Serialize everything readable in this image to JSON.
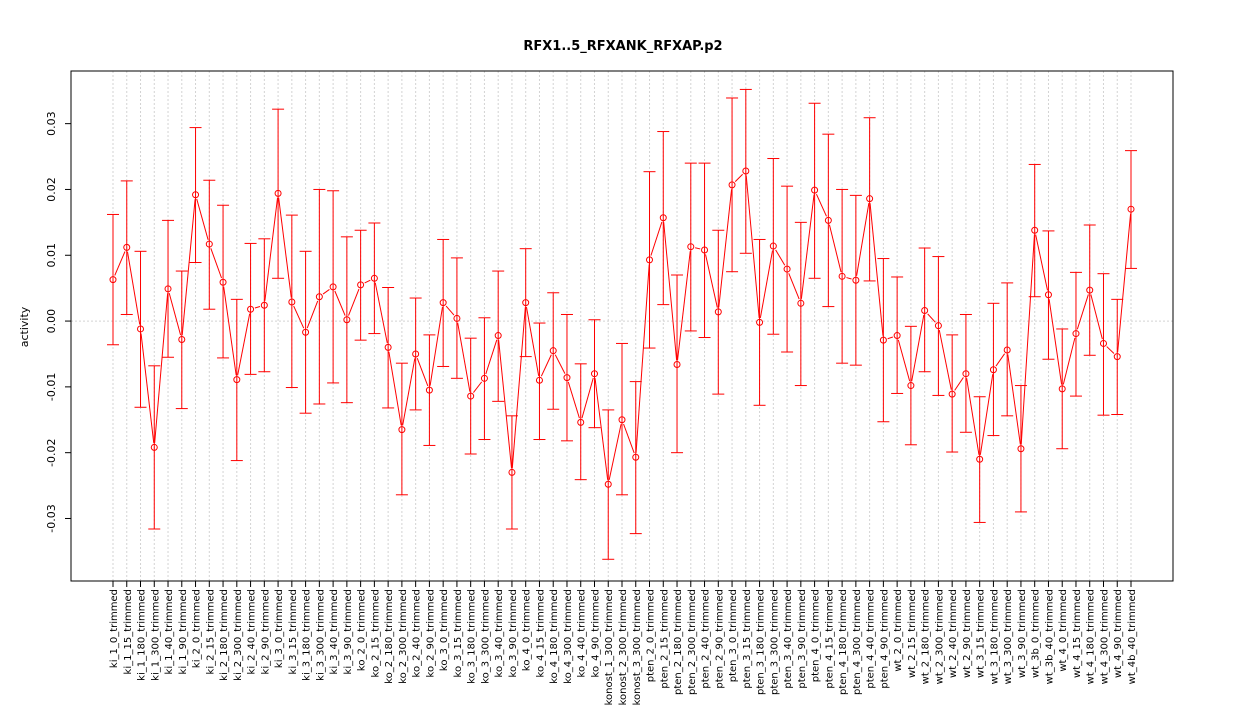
{
  "chart_data": {
    "type": "line",
    "title": "RFX1..5_RFXANK_RFXAP.p2",
    "xlabel": "",
    "ylabel": "activity",
    "ylim": [
      -0.0395,
      0.038
    ],
    "yticks": [
      -0.03,
      -0.02,
      -0.01,
      0.0,
      0.01,
      0.02,
      0.03
    ],
    "ytick_labels": [
      "-0.03",
      "-0.02",
      "-0.01",
      "0.00",
      "0.01",
      "0.02",
      "0.03"
    ],
    "grid": true,
    "line_color": "#ff0000",
    "grid_color": "#d3d3d3",
    "categories": [
      "ki_1_0_trimmed",
      "ki_1_15_trimmed",
      "ki_1_180_trimmed",
      "ki_1_300_trimmed",
      "ki_1_40_trimmed",
      "ki_1_90_trimmed",
      "ki_2_0_trimmed",
      "ki_2_15_trimmed",
      "ki_2_180_trimmed",
      "ki_2_300_trimmed",
      "ki_2_40_trimmed",
      "ki_2_90_trimmed",
      "ki_3_0_trimmed",
      "ki_3_15_trimmed",
      "ki_3_180_trimmed",
      "ki_3_300_trimmed",
      "ki_3_40_trimmed",
      "ki_3_90_trimmed",
      "ko_2_0_trimmed",
      "ko_2_15_trimmed",
      "ko_2_180_trimmed",
      "ko_2_300_trimmed",
      "ko_2_40_trimmed",
      "ko_2_90_trimmed",
      "ko_3_0_trimmed",
      "ko_3_15_trimmed",
      "ko_3_180_trimmed",
      "ko_3_300_trimmed",
      "ko_3_40_trimmed",
      "ko_3_90_trimmed",
      "ko_4_0_trimmed",
      "ko_4_15_trimmed",
      "ko_4_180_trimmed",
      "ko_4_300_trimmed",
      "ko_4_40_trimmed",
      "ko_4_90_trimmed",
      "konost_1_300_trimmed",
      "konost_2_300_trimmed",
      "konost_3_300_trimmed",
      "pten_2_0_trimmed",
      "pten_2_15_trimmed",
      "pten_2_180_trimmed",
      "pten_2_300_trimmed",
      "pten_2_40_trimmed",
      "pten_2_90_trimmed",
      "pten_3_0_trimmed",
      "pten_3_15_trimmed",
      "pten_3_180_trimmed",
      "pten_3_300_trimmed",
      "pten_3_40_trimmed",
      "pten_3_90_trimmed",
      "pten_4_0_trimmed",
      "pten_4_15_trimmed",
      "pten_4_180_trimmed",
      "pten_4_300_trimmed",
      "pten_4_40_trimmed",
      "pten_4_90_trimmed",
      "wt_2_0_trimmed",
      "wt_2_15_trimmed",
      "wt_2_180_trimmed",
      "wt_2_300_trimmed",
      "wt_2_40_trimmed",
      "wt_2_90_trimmed",
      "wt_3_15_trimmed",
      "wt_3_180_trimmed",
      "wt_3_300_trimmed",
      "wt_3_90_trimmed",
      "wt_3b_0_trimmed",
      "wt_3b_40_trimmed",
      "wt_4_0_trimmed",
      "wt_4_15_trimmed",
      "wt_4_180_trimmed",
      "wt_4_300_trimmed",
      "wt_4_90_trimmed",
      "wt_4b_40_trimmed"
    ],
    "values": [
      0.0063,
      0.0112,
      -0.0012,
      -0.0192,
      0.0049,
      -0.0028,
      0.0192,
      0.0117,
      0.0059,
      -0.0089,
      0.0018,
      0.0024,
      0.0194,
      0.0029,
      -0.0017,
      0.0037,
      0.0052,
      0.0002,
      0.0055,
      0.0065,
      -0.004,
      -0.0165,
      -0.005,
      -0.0105,
      0.0028,
      0.0004,
      -0.0114,
      -0.0087,
      -0.0022,
      -0.023,
      0.0028,
      -0.009,
      -0.0045,
      -0.0086,
      -0.0154,
      -0.008,
      -0.0248,
      -0.015,
      -0.0207,
      0.0093,
      0.0157,
      -0.0066,
      0.0113,
      0.0108,
      0.0014,
      0.0207,
      0.0228,
      -0.0002,
      0.0114,
      0.0079,
      0.0027,
      0.0199,
      0.0153,
      0.0068,
      0.0062,
      0.0186,
      -0.0029,
      -0.0022,
      -0.0098,
      0.0016,
      -0.0007,
      -0.0111,
      -0.008,
      -0.021,
      -0.0074,
      -0.0044,
      -0.0194,
      0.0138,
      0.004,
      -0.0103,
      -0.0019,
      0.0047,
      -0.0034,
      -0.0054,
      0.017
    ],
    "err_low": [
      -0.0036,
      0.001,
      -0.0131,
      -0.0316,
      -0.0055,
      -0.0133,
      0.0089,
      0.0018,
      -0.0056,
      -0.0212,
      -0.0081,
      -0.0077,
      0.0065,
      -0.0101,
      -0.014,
      -0.0126,
      -0.0094,
      -0.0124,
      -0.0029,
      -0.0019,
      -0.0132,
      -0.0264,
      -0.0135,
      -0.0189,
      -0.0069,
      -0.0087,
      -0.0202,
      -0.018,
      -0.0122,
      -0.0316,
      -0.0054,
      -0.018,
      -0.0134,
      -0.0182,
      -0.0241,
      -0.0162,
      -0.0362,
      -0.0264,
      -0.0323,
      -0.0041,
      0.0025,
      -0.02,
      -0.0015,
      -0.0025,
      -0.0111,
      0.0075,
      0.0103,
      -0.0128,
      -0.002,
      -0.0047,
      -0.0098,
      0.0065,
      0.0022,
      -0.0064,
      -0.0067,
      0.0061,
      -0.0153,
      -0.011,
      -0.0188,
      -0.0077,
      -0.0113,
      -0.0199,
      -0.0169,
      -0.0306,
      -0.0174,
      -0.0144,
      -0.029,
      0.0037,
      -0.0058,
      -0.0194,
      -0.0114,
      -0.0052,
      -0.0143,
      -0.0142,
      0.008
    ],
    "err_high": [
      0.0162,
      0.0213,
      0.0106,
      -0.0068,
      0.0153,
      0.0076,
      0.0294,
      0.0214,
      0.0176,
      0.0033,
      0.0118,
      0.0125,
      0.0322,
      0.0161,
      0.0106,
      0.02,
      0.0198,
      0.0128,
      0.0138,
      0.0149,
      0.0051,
      -0.0064,
      0.0035,
      -0.0021,
      0.0124,
      0.0096,
      -0.0026,
      0.0005,
      0.0076,
      -0.0144,
      0.011,
      -0.0003,
      0.0043,
      0.001,
      -0.0065,
      0.0002,
      -0.0135,
      -0.0034,
      -0.0092,
      0.0227,
      0.0288,
      0.007,
      0.024,
      0.024,
      0.0138,
      0.0339,
      0.0352,
      0.0124,
      0.0247,
      0.0205,
      0.015,
      0.0331,
      0.0284,
      0.02,
      0.0191,
      0.0309,
      0.0095,
      0.0067,
      -0.0008,
      0.0111,
      0.0098,
      -0.0021,
      0.001,
      -0.0115,
      0.0027,
      0.0058,
      -0.0098,
      0.0238,
      0.0137,
      -0.0012,
      0.0074,
      0.0146,
      0.0072,
      0.0033,
      0.0259
    ]
  }
}
